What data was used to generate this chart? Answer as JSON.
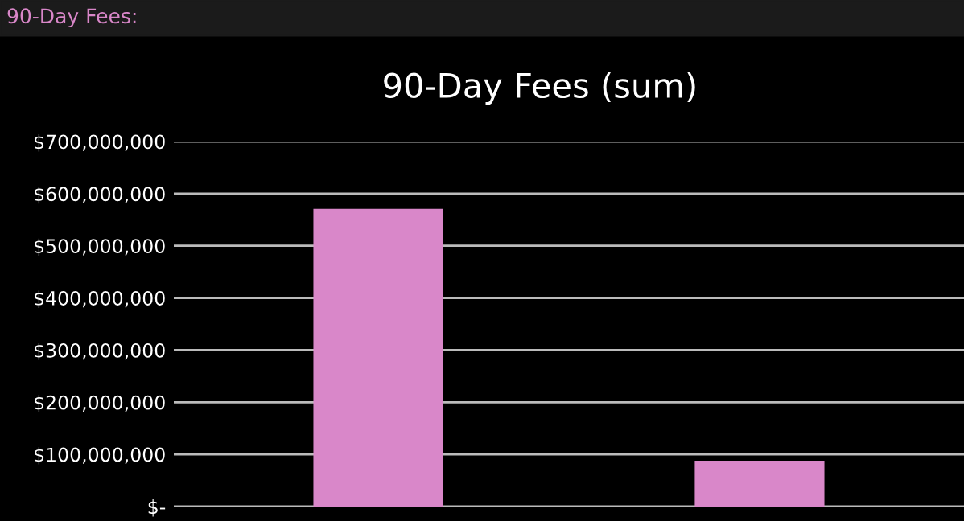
{
  "chart_data": {
    "type": "bar",
    "title": "90-Day Fees (sum)",
    "annotations": [
      "90-Day Fees:"
    ],
    "categories": [
      null,
      null
    ],
    "values": [
      571000000,
      88000000
    ],
    "color": "#d987c9",
    "ylim": [
      0,
      700000000
    ],
    "yticks": [
      {
        "value": 0,
        "label": "$-"
      },
      {
        "value": 100000000,
        "label": "$100,000,000"
      },
      {
        "value": 200000000,
        "label": "$200,000,000"
      },
      {
        "value": 300000000,
        "label": "$300,000,000"
      },
      {
        "value": 400000000,
        "label": "$400,000,000"
      },
      {
        "value": 500000000,
        "label": "$500,000,000"
      },
      {
        "value": 600000000,
        "label": "$600,000,000"
      },
      {
        "value": 700000000,
        "label": "$700,000,000"
      }
    ],
    "grid": "y",
    "legend": false
  }
}
